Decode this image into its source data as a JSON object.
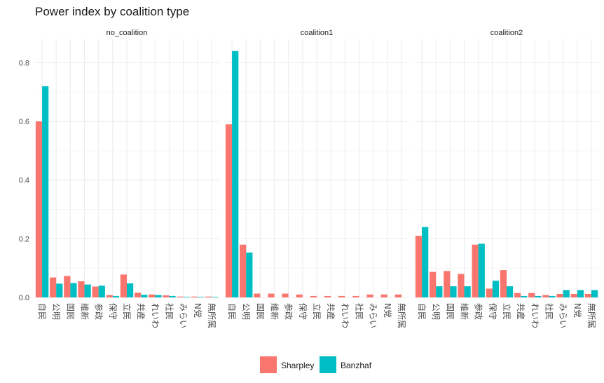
{
  "chart_data": {
    "type": "bar",
    "title": "Power index by coalition type",
    "categories": [
      "自民",
      "公明",
      "国民",
      "維新",
      "参政",
      "保守",
      "立民",
      "共産",
      "れいわ",
      "社民",
      "みらい",
      "N党",
      "無所属"
    ],
    "yticks": [
      "0.0",
      "0.2",
      "0.4",
      "0.6",
      "0.8"
    ],
    "ylim": [
      0,
      0.88
    ],
    "grid": true,
    "legend_position": "bottom",
    "series_names": [
      "Sharpley",
      "Banzhaf"
    ],
    "colors": {
      "Sharpley": "#F8766D",
      "Banzhaf": "#00BFC4"
    },
    "panels": [
      {
        "name": "no_coalition",
        "series": [
          {
            "name": "Sharpley",
            "values": [
              0.6,
              0.068,
              0.073,
              0.055,
              0.037,
              0.008,
              0.078,
              0.016,
              0.01,
              0.007,
              0.003,
              0.003,
              0.003
            ]
          },
          {
            "name": "Banzhaf",
            "values": [
              0.72,
              0.047,
              0.049,
              0.044,
              0.04,
              0.005,
              0.048,
              0.009,
              0.008,
              0.005,
              0.002,
              0.002,
              0.002
            ]
          }
        ]
      },
      {
        "name": "coalition1",
        "series": [
          {
            "name": "Sharpley",
            "values": [
              0.59,
              0.18,
              0.013,
              0.013,
              0.013,
              0.01,
              0.005,
              0.005,
              0.005,
              0.005,
              0.01,
              0.01,
              0.01
            ]
          },
          {
            "name": "Banzhaf",
            "values": [
              0.84,
              0.153,
              0,
              0,
              0,
              0,
              0,
              0,
              0,
              0,
              0,
              0,
              0
            ]
          }
        ]
      },
      {
        "name": "coalition2",
        "series": [
          {
            "name": "Sharpley",
            "values": [
              0.21,
              0.087,
              0.09,
              0.08,
              0.18,
              0.03,
              0.093,
              0.015,
              0.015,
              0.008,
              0.012,
              0.012,
              0.012
            ]
          },
          {
            "name": "Banzhaf",
            "values": [
              0.24,
              0.038,
              0.038,
              0.038,
              0.183,
              0.057,
              0.038,
              0.005,
              0.005,
              0.005,
              0.025,
              0.025,
              0.025
            ]
          }
        ]
      }
    ]
  }
}
